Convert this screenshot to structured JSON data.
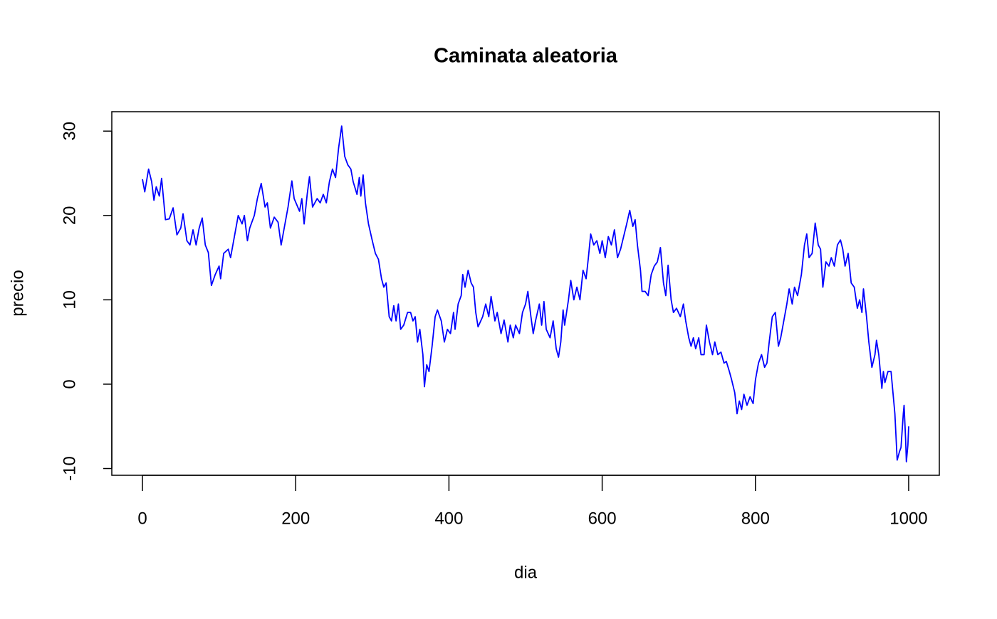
{
  "chart_data": {
    "type": "line",
    "title": "Caminata aleatoria",
    "x_label": "dia",
    "y_label": "precio",
    "x": [
      0,
      3,
      8,
      12,
      15,
      18,
      22,
      25,
      30,
      35,
      40,
      45,
      50,
      53,
      58,
      62,
      66,
      70,
      74,
      78,
      82,
      86,
      90,
      95,
      100,
      102,
      106,
      112,
      115,
      120,
      125,
      130,
      133,
      137,
      140,
      146,
      150,
      155,
      160,
      163,
      167,
      172,
      177,
      181,
      185,
      190,
      195,
      198,
      205,
      208,
      211,
      215,
      218,
      222,
      228,
      232,
      236,
      240,
      244,
      248,
      252,
      256,
      260,
      264,
      268,
      272,
      275,
      280,
      283,
      285,
      288,
      291,
      295,
      300,
      304,
      308,
      312,
      315,
      318,
      322,
      325,
      328,
      331,
      334,
      337,
      341,
      346,
      350,
      353,
      356,
      359,
      362,
      366,
      368,
      371,
      374,
      378,
      382,
      385,
      390,
      394,
      398,
      402,
      406,
      408,
      412,
      416,
      418,
      421,
      425,
      429,
      432,
      435,
      438,
      444,
      448,
      452,
      455,
      460,
      463,
      468,
      472,
      477,
      480,
      484,
      487,
      492,
      496,
      500,
      503,
      507,
      510,
      513,
      518,
      521,
      524,
      527,
      532,
      536,
      540,
      543,
      546,
      549,
      551,
      556,
      559,
      563,
      567,
      571,
      575,
      579,
      582,
      585,
      589,
      593,
      597,
      600,
      604,
      608,
      612,
      616,
      620,
      624,
      628,
      632,
      636,
      640,
      643,
      646,
      650,
      652,
      656,
      660,
      664,
      668,
      672,
      676,
      680,
      683,
      686,
      690,
      693,
      697,
      702,
      706,
      709,
      713,
      716,
      719,
      722,
      726,
      729,
      733,
      736,
      740,
      744,
      747,
      751,
      755,
      759,
      762,
      766,
      769,
      773,
      776,
      779,
      782,
      785,
      789,
      793,
      797,
      800,
      804,
      808,
      812,
      815,
      818,
      822,
      826,
      830,
      833,
      837,
      841,
      844,
      848,
      851,
      855,
      860,
      864,
      867,
      870,
      874,
      878,
      882,
      885,
      888,
      892,
      896,
      899,
      903,
      907,
      911,
      914,
      917,
      921,
      925,
      929,
      933,
      936,
      939,
      941,
      945,
      948,
      952,
      956,
      958,
      961,
      965,
      967,
      969,
      973,
      977,
      982,
      985,
      988,
      990,
      993,
      994,
      996,
      997,
      999,
      1000
    ],
    "series": [
      {
        "name": "precio",
        "color": "#0000ff",
        "values": [
          24.3,
          22.8,
          25.5,
          24,
          21.8,
          23.4,
          22.3,
          24.4,
          19.5,
          19.6,
          20.9,
          17.7,
          18.5,
          20.2,
          17,
          16.5,
          18.3,
          16.5,
          18.5,
          19.7,
          16.5,
          15.6,
          11.7,
          13,
          14,
          12.5,
          15.5,
          16,
          15,
          17.5,
          20,
          19,
          20,
          17,
          18.5,
          20,
          22,
          23.8,
          21,
          21.5,
          18.5,
          19.8,
          19.2,
          16.5,
          18.5,
          21,
          24.1,
          22,
          20.5,
          22,
          19,
          22.5,
          24.6,
          21,
          22,
          21.5,
          22.5,
          21.5,
          24,
          25.5,
          24.5,
          28,
          30.6,
          27,
          26,
          25.5,
          24,
          22.5,
          24.5,
          22.3,
          24.8,
          21.5,
          19,
          17,
          15.5,
          14.8,
          12.5,
          11.5,
          12,
          8,
          7.5,
          9.3,
          7.5,
          9.5,
          6.5,
          7,
          8.5,
          8.5,
          7.5,
          8,
          5,
          6.5,
          3.5,
          -0.3,
          2.3,
          1.5,
          4.5,
          8,
          8.8,
          7.5,
          5,
          6.5,
          6,
          8.5,
          6.5,
          9.5,
          10.5,
          13,
          11.5,
          13.5,
          12,
          11.5,
          8.5,
          6.8,
          8,
          9.5,
          8,
          10.4,
          7.5,
          8.5,
          6,
          7.6,
          5,
          7,
          5.5,
          7,
          6,
          8.5,
          9.5,
          11,
          8,
          6,
          7.5,
          9.5,
          7,
          9.8,
          6.5,
          5.5,
          7.5,
          4.2,
          3.2,
          5,
          8.8,
          7,
          10,
          12.3,
          10,
          11.5,
          10,
          13.5,
          12.5,
          15,
          17.8,
          16.5,
          17,
          15.5,
          17,
          15,
          17.5,
          16.5,
          18.3,
          15,
          16,
          17.5,
          19,
          20.6,
          18.7,
          19.5,
          16.5,
          13.5,
          11,
          11,
          10.5,
          13,
          14,
          14.5,
          16.2,
          12,
          10.5,
          14.1,
          10,
          8.5,
          9,
          8,
          9.5,
          7.5,
          5.5,
          4.5,
          5.5,
          4.2,
          5.5,
          3.5,
          3.5,
          7,
          5,
          3.5,
          5,
          3.5,
          3.8,
          2.5,
          2.7,
          1.5,
          0.5,
          -1,
          -3.5,
          -2,
          -3,
          -1.2,
          -2.5,
          -1.5,
          -2.3,
          0.5,
          2.5,
          3.5,
          2,
          2.5,
          5,
          8,
          8.5,
          4.5,
          5.5,
          7.5,
          9.5,
          11.3,
          9.5,
          11.5,
          10.5,
          13,
          16.5,
          17.8,
          15,
          15.5,
          19.1,
          16.5,
          16,
          11.5,
          14.5,
          14,
          15,
          14,
          16.5,
          17.1,
          16,
          14,
          15.5,
          12,
          11.5,
          9,
          10,
          8.5,
          11.3,
          8,
          5,
          2,
          3.5,
          5.2,
          3.5,
          -0.5,
          1.5,
          0.2,
          1.5,
          1.5,
          -3.5,
          -9,
          -8,
          -7.5,
          -3.5,
          -2.5,
          -6.5,
          -9.2,
          -7.2,
          -5
        ]
      }
    ],
    "xlim": [
      -40,
      1040
    ],
    "ylim": [
      -10.8,
      32.3
    ],
    "xticks": [
      0,
      200,
      400,
      600,
      800,
      1000
    ],
    "yticks": [
      -10,
      0,
      10,
      20,
      30
    ]
  }
}
